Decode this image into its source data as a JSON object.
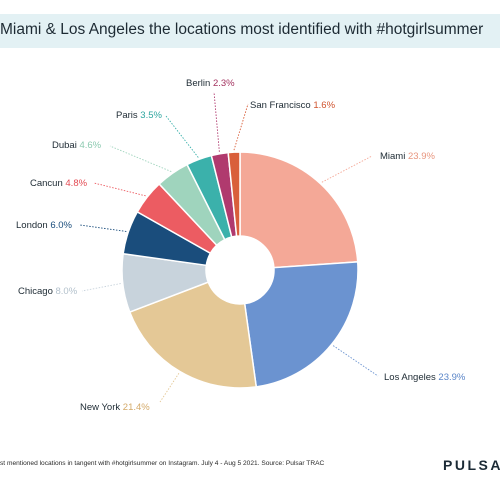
{
  "title": "Miami & Los Angeles the locations most identified with #hotgirlsummer",
  "footnote": "st mentioned locations in tangent with #hotgirlsummer on Instagram. July 4 - Aug 5 2021. Source: Pulsar TRAC",
  "brand": "PULSAR",
  "chart_data": {
    "type": "pie",
    "variant": "donut",
    "title": "Miami & Los Angeles the locations most identified with #hotgirlsummer",
    "slices": [
      {
        "label": "Miami",
        "value": 23.9,
        "value_text": "23.9%",
        "color": "#f4a897",
        "label_color": "#e8967f"
      },
      {
        "label": "Los Angeles",
        "value": 23.9,
        "value_text": "23.9%",
        "color": "#6b93d0",
        "label_color": "#5a85c8"
      },
      {
        "label": "New York",
        "value": 21.4,
        "value_text": "21.4%",
        "color": "#e4c896",
        "label_color": "#d4aa6a"
      },
      {
        "label": "Chicago",
        "value": 8.0,
        "value_text": "8.0%",
        "color": "#c8d3dc",
        "label_color": "#b3c1cc"
      },
      {
        "label": "London",
        "value": 6.0,
        "value_text": "6.0%",
        "color": "#1a4d7c",
        "label_color": "#1a4d7c"
      },
      {
        "label": "Cancun",
        "value": 4.8,
        "value_text": "4.8%",
        "color": "#ec5c62",
        "label_color": "#e34b53"
      },
      {
        "label": "Dubai",
        "value": 4.6,
        "value_text": "4.6%",
        "color": "#9fd4bd",
        "label_color": "#8ccab0"
      },
      {
        "label": "Paris",
        "value": 3.5,
        "value_text": "3.5%",
        "color": "#3bb1ab",
        "label_color": "#2fa6a0"
      },
      {
        "label": "Berlin",
        "value": 2.3,
        "value_text": "2.3%",
        "color": "#b03a6e",
        "label_color": "#a3325f"
      },
      {
        "label": "San Francisco",
        "value": 1.6,
        "value_text": "1.6%",
        "color": "#d95f3b",
        "label_color": "#d0542f"
      }
    ]
  }
}
